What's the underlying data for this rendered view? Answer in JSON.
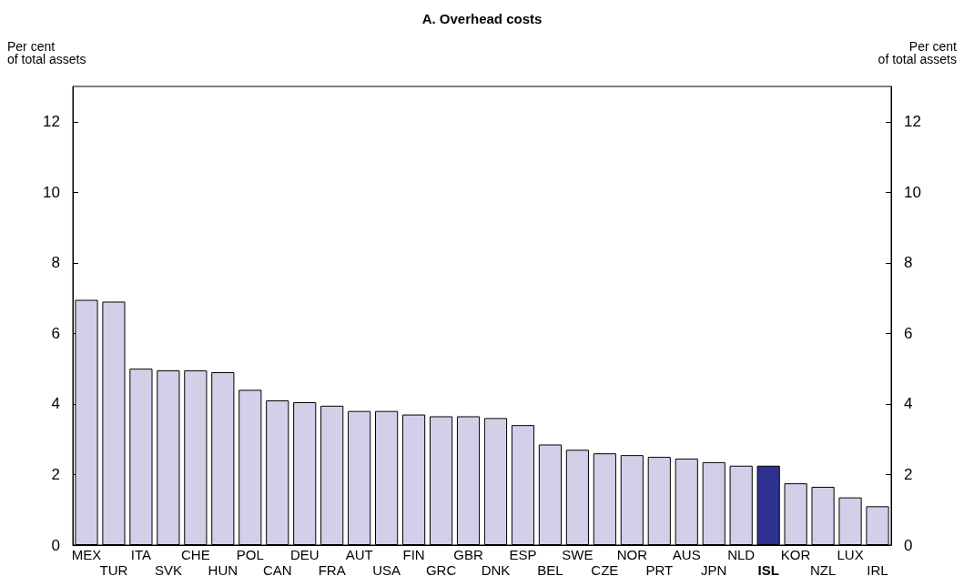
{
  "chart_data": {
    "type": "bar",
    "title": "A. Overhead costs",
    "ylabel": "Per cent\nof total assets",
    "y2label": "Per cent\nof total assets",
    "categories": [
      "MEX",
      "TUR",
      "ITA",
      "SVK",
      "CHE",
      "HUN",
      "POL",
      "CAN",
      "DEU",
      "FRA",
      "AUT",
      "USA",
      "FIN",
      "GRC",
      "GBR",
      "DNK",
      "ESP",
      "BEL",
      "SWE",
      "CZE",
      "NOR",
      "PRT",
      "AUS",
      "JPN",
      "NLD",
      "ISL",
      "KOR",
      "NZL",
      "LUX",
      "IRL"
    ],
    "values": [
      6.95,
      6.9,
      5.0,
      4.95,
      4.95,
      4.9,
      4.4,
      4.1,
      4.05,
      3.95,
      3.8,
      3.8,
      3.7,
      3.65,
      3.65,
      3.6,
      3.4,
      2.85,
      2.7,
      2.6,
      2.55,
      2.5,
      2.45,
      2.35,
      2.25,
      2.25,
      1.75,
      1.65,
      1.35,
      1.1
    ],
    "colors": [
      "#d2d0e8",
      "#d2d0e8",
      "#d2d0e8",
      "#d2d0e8",
      "#d2d0e8",
      "#d2d0e8",
      "#d2d0e8",
      "#d2d0e8",
      "#d2d0e8",
      "#d2d0e8",
      "#d2d0e8",
      "#d2d0e8",
      "#d2d0e8",
      "#d2d0e8",
      "#d2d0e8",
      "#d2d0e8",
      "#d2d0e8",
      "#d2d0e8",
      "#d2d0e8",
      "#d2d0e8",
      "#d2d0e8",
      "#d2d0e8",
      "#d2d0e8",
      "#d2d0e8",
      "#d2d0e8",
      "#2e3192",
      "#d2d0e8",
      "#d2d0e8",
      "#d2d0e8",
      "#d2d0e8"
    ],
    "ylim": [
      0,
      13
    ],
    "yticks": [
      0,
      2,
      4,
      6,
      8,
      10,
      12
    ],
    "y2lim": [
      0,
      13
    ],
    "y2ticks": [
      0,
      2,
      4,
      6,
      8,
      10,
      12
    ],
    "grid": false
  }
}
